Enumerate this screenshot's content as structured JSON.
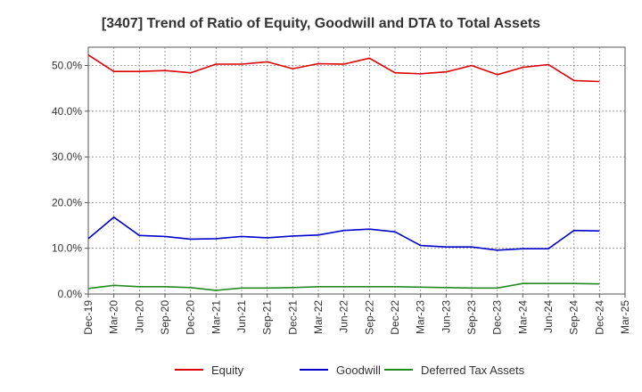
{
  "chart_data": {
    "type": "line",
    "title": "[3407]  Trend of Ratio of Equity, Goodwill and DTA to Total Assets",
    "xlabel": "",
    "ylabel": "",
    "ylim": [
      0,
      54
    ],
    "yticks": [
      0,
      10,
      20,
      30,
      40,
      50
    ],
    "ytick_labels": [
      "0.0%",
      "10.0%",
      "20.0%",
      "30.0%",
      "40.0%",
      "50.0%"
    ],
    "categories": [
      "Dec-19",
      "Mar-20",
      "Jun-20",
      "Sep-20",
      "Dec-20",
      "Mar-21",
      "Jun-21",
      "Sep-21",
      "Dec-21",
      "Mar-22",
      "Jun-22",
      "Sep-22",
      "Dec-22",
      "Mar-23",
      "Jun-23",
      "Sep-23",
      "Dec-23",
      "Mar-24",
      "Jun-24",
      "Sep-24",
      "Dec-24",
      "Mar-25"
    ],
    "series": [
      {
        "name": "Equity",
        "color": "#dd0000",
        "values": [
          52.3,
          48.7,
          48.7,
          48.9,
          48.4,
          50.3,
          50.3,
          50.8,
          49.3,
          50.4,
          50.3,
          51.6,
          48.4,
          48.2,
          48.6,
          50.0,
          48.0,
          49.6,
          50.2,
          46.7,
          46.5,
          null
        ]
      },
      {
        "name": "Goodwill",
        "color": "#0000cc",
        "values": [
          12.1,
          16.8,
          12.8,
          12.6,
          12.0,
          12.1,
          12.6,
          12.3,
          12.7,
          12.9,
          13.9,
          14.2,
          13.6,
          10.6,
          10.3,
          10.3,
          9.6,
          9.9,
          9.9,
          13.9,
          13.8,
          null
        ]
      },
      {
        "name": "Deferred Tax Assets",
        "color": "#228b22",
        "values": [
          1.2,
          1.9,
          1.6,
          1.6,
          1.4,
          0.8,
          1.3,
          1.3,
          1.4,
          1.6,
          1.6,
          1.6,
          1.6,
          1.5,
          1.4,
          1.3,
          1.3,
          2.3,
          2.3,
          2.3,
          2.2,
          null
        ]
      }
    ],
    "grid": true,
    "legend_position": "bottom"
  }
}
